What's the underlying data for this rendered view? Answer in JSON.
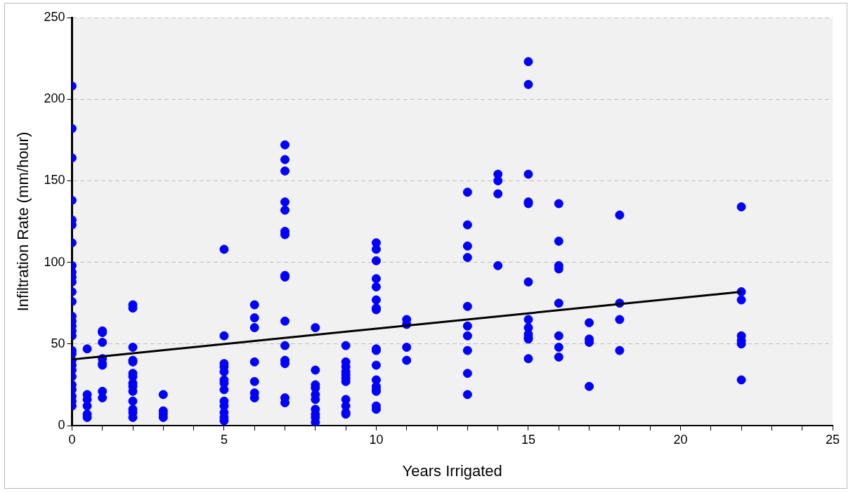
{
  "chart_data": {
    "type": "scatter",
    "xlabel": "Years Irrigated",
    "ylabel": "Infiltration Rate (mm/hour)",
    "xlim": [
      0,
      25
    ],
    "ylim": [
      0,
      250
    ],
    "xticks": [
      0,
      {
        "value": 1,
        "label": null
      },
      {
        "value": 2,
        "label": null
      },
      {
        "value": 3,
        "label": null
      },
      {
        "value": 4,
        "label": null
      },
      5,
      {
        "value": 6,
        "label": null
      },
      {
        "value": 7,
        "label": null
      },
      {
        "value": 8,
        "label": null
      },
      {
        "value": 9,
        "label": null
      },
      10,
      {
        "value": 11,
        "label": null
      },
      {
        "value": 12,
        "label": null
      },
      {
        "value": 13,
        "label": null
      },
      {
        "value": 14,
        "label": null
      },
      15,
      {
        "value": 16,
        "label": null
      },
      {
        "value": 17,
        "label": null
      },
      {
        "value": 18,
        "label": null
      },
      {
        "value": 19,
        "label": null
      },
      20,
      {
        "value": 21,
        "label": null
      },
      {
        "value": 22,
        "label": null
      },
      {
        "value": 23,
        "label": null
      },
      {
        "value": 24,
        "label": null
      },
      25
    ],
    "yticks": [
      0,
      50,
      100,
      150,
      200,
      250
    ],
    "grid": "y",
    "legend": false,
    "marker": "circle",
    "series": [
      {
        "type": "scatter",
        "color": "#0000ff",
        "x": [
          0,
          0,
          0,
          0,
          0,
          0,
          0,
          0,
          0,
          0,
          0,
          0,
          0,
          0,
          0,
          0,
          0,
          0,
          0,
          0,
          0,
          0,
          0,
          0,
          0,
          0,
          0,
          0,
          0,
          0.5,
          0.5,
          0.5,
          0.5,
          0.5,
          0.5,
          1,
          1,
          1,
          1,
          1,
          1,
          1,
          1,
          2,
          2,
          2,
          2,
          2,
          2,
          2,
          2,
          2,
          2,
          2,
          2,
          2,
          2,
          3,
          3,
          3,
          3,
          5,
          5,
          5,
          5,
          5,
          5,
          5,
          5,
          5,
          5,
          5,
          5,
          5,
          6,
          6,
          6,
          6,
          6,
          6,
          6,
          7,
          7,
          7,
          7,
          7,
          7,
          7,
          7,
          7,
          7,
          7,
          7,
          7,
          7,
          7,
          8,
          8,
          8,
          8,
          8,
          8,
          8,
          8,
          8,
          8,
          9,
          9,
          9,
          9,
          9,
          9,
          9,
          9,
          9,
          9,
          9,
          10,
          10,
          10,
          10,
          10,
          10,
          10,
          10,
          10,
          10,
          10,
          10,
          10,
          10,
          10,
          10,
          10,
          11,
          11,
          11,
          11,
          13,
          13,
          13,
          13,
          13,
          13,
          13,
          13,
          13,
          13,
          14,
          14,
          14,
          14,
          15,
          15,
          15,
          15,
          15,
          15,
          15,
          15,
          15,
          15,
          15,
          15,
          16,
          16,
          16,
          16,
          16,
          16,
          16,
          16,
          17,
          17,
          17,
          17,
          18,
          18,
          18,
          18,
          22,
          22,
          22,
          22,
          22,
          22,
          22
        ],
        "values": [
          208,
          182,
          164,
          138,
          126,
          123,
          112,
          98,
          94,
          91,
          88,
          82,
          76,
          67,
          64,
          61,
          58,
          55,
          46,
          44,
          40,
          37,
          34,
          30,
          25,
          22,
          18,
          15,
          12,
          47,
          19,
          16,
          12,
          7,
          5,
          58,
          57,
          51,
          41,
          38,
          37,
          21,
          17,
          74,
          72,
          48,
          40,
          39,
          32,
          30,
          26,
          24,
          21,
          15,
          10,
          8,
          5,
          19,
          9,
          7,
          5,
          108,
          55,
          38,
          36,
          33,
          28,
          26,
          22,
          15,
          12,
          8,
          5,
          3,
          74,
          66,
          60,
          39,
          27,
          20,
          17,
          172,
          163,
          156,
          137,
          132,
          119,
          117,
          92,
          91,
          64,
          49,
          40,
          38,
          17,
          14,
          60,
          34,
          25,
          23,
          19,
          16,
          10,
          7,
          5,
          2,
          49,
          39,
          36,
          33,
          31,
          29,
          27,
          16,
          12,
          8,
          7,
          112,
          108,
          101,
          90,
          85,
          77,
          72,
          71,
          47,
          46,
          37,
          28,
          24,
          22,
          21,
          12,
          10,
          65,
          62,
          48,
          40,
          143,
          123,
          110,
          103,
          73,
          61,
          55,
          46,
          32,
          19,
          154,
          150,
          142,
          98,
          223,
          209,
          154,
          137,
          136,
          88,
          65,
          60,
          56,
          54,
          53,
          41,
          136,
          113,
          98,
          96,
          75,
          55,
          48,
          42,
          63,
          53,
          51,
          24,
          129,
          75,
          65,
          46,
          134,
          82,
          77,
          55,
          52,
          50,
          28
        ]
      },
      {
        "type": "line",
        "color": "#000000",
        "marker": "none",
        "line_style": "solid",
        "x": [
          0,
          22
        ],
        "values": [
          40.5,
          82
        ]
      }
    ]
  }
}
